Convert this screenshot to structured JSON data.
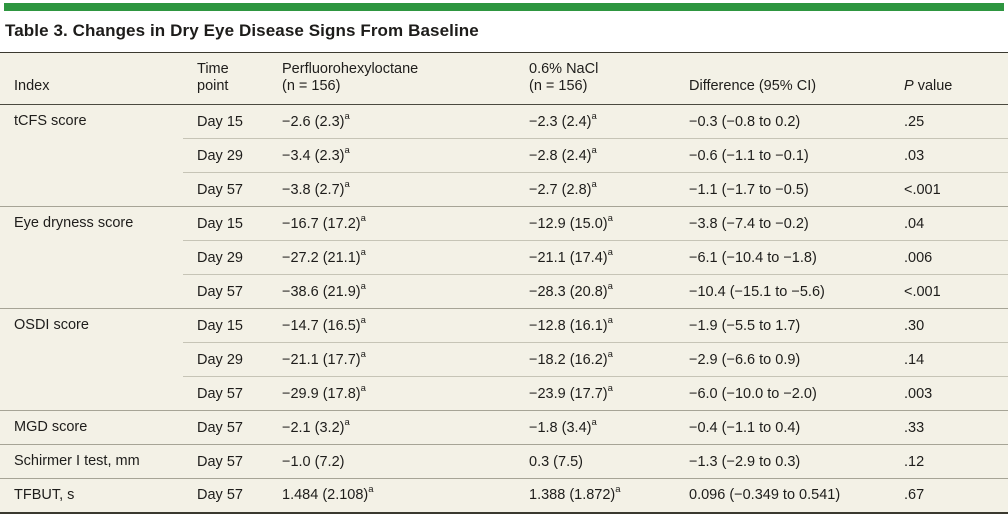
{
  "title": "Table 3. Changes in Dry Eye Disease Signs From Baseline",
  "colors": {
    "accent_green": "#2e9640",
    "table_background": "#f3f1e6",
    "rule_dark": "#3a392f",
    "rule_group": "#a6a496",
    "rule_row": "#c6c4b6",
    "text": "#1e1d1b"
  },
  "table": {
    "headers": [
      {
        "key": "index",
        "lines": [
          "Index"
        ],
        "italic_first": false
      },
      {
        "key": "time-point",
        "lines": [
          "Time",
          "point"
        ],
        "italic_first": false
      },
      {
        "key": "perfluorohexyloctane",
        "lines": [
          "Perfluorohexyloctane",
          "(n = 156)"
        ],
        "italic_first": false
      },
      {
        "key": "nacl",
        "lines": [
          "0.6% NaCl",
          "(n = 156)"
        ],
        "italic_first": false
      },
      {
        "key": "difference",
        "lines": [
          "Difference (95% CI)"
        ],
        "italic_first": false
      },
      {
        "key": "p-value",
        "lines": [
          "P value"
        ],
        "italic_first": true
      }
    ],
    "groups": [
      {
        "index": "tCFS score",
        "rows": [
          {
            "time": "Day 15",
            "pfho": "−2.6 (2.3)",
            "pfho_sup": "a",
            "nacl": "−2.3 (2.4)",
            "nacl_sup": "a",
            "diff": "−0.3 (−0.8 to 0.2)",
            "p": ".25"
          },
          {
            "time": "Day 29",
            "pfho": "−3.4 (2.3)",
            "pfho_sup": "a",
            "nacl": "−2.8 (2.4)",
            "nacl_sup": "a",
            "diff": "−0.6 (−1.1 to −0.1)",
            "p": ".03"
          },
          {
            "time": "Day 57",
            "pfho": "−3.8 (2.7)",
            "pfho_sup": "a",
            "nacl": "−2.7 (2.8)",
            "nacl_sup": "a",
            "diff": "−1.1 (−1.7 to −0.5)",
            "p": "<.001"
          }
        ]
      },
      {
        "index": "Eye dryness score",
        "rows": [
          {
            "time": "Day 15",
            "pfho": "−16.7 (17.2)",
            "pfho_sup": "a",
            "nacl": "−12.9 (15.0)",
            "nacl_sup": "a",
            "diff": "−3.8 (−7.4 to −0.2)",
            "p": ".04"
          },
          {
            "time": "Day 29",
            "pfho": "−27.2 (21.1)",
            "pfho_sup": "a",
            "nacl": "−21.1 (17.4)",
            "nacl_sup": "a",
            "diff": "−6.1 (−10.4 to −1.8)",
            "p": ".006"
          },
          {
            "time": "Day 57",
            "pfho": "−38.6 (21.9)",
            "pfho_sup": "a",
            "nacl": "−28.3 (20.8)",
            "nacl_sup": "a",
            "diff": "−10.4 (−15.1 to −5.6)",
            "p": "<.001"
          }
        ]
      },
      {
        "index": "OSDI score",
        "rows": [
          {
            "time": "Day 15",
            "pfho": "−14.7 (16.5)",
            "pfho_sup": "a",
            "nacl": "−12.8 (16.1)",
            "nacl_sup": "a",
            "diff": "−1.9 (−5.5 to 1.7)",
            "p": ".30"
          },
          {
            "time": "Day 29",
            "pfho": "−21.1 (17.7)",
            "pfho_sup": "a",
            "nacl": "−18.2 (16.2)",
            "nacl_sup": "a",
            "diff": "−2.9 (−6.6 to 0.9)",
            "p": ".14"
          },
          {
            "time": "Day 57",
            "pfho": "−29.9 (17.8)",
            "pfho_sup": "a",
            "nacl": "−23.9 (17.7)",
            "nacl_sup": "a",
            "diff": "−6.0 (−10.0 to −2.0)",
            "p": ".003"
          }
        ]
      },
      {
        "index": "MGD score",
        "rows": [
          {
            "time": "Day 57",
            "pfho": "−2.1 (3.2)",
            "pfho_sup": "a",
            "nacl": "−1.8 (3.4)",
            "nacl_sup": "a",
            "diff": "−0.4 (−1.1 to 0.4)",
            "p": ".33"
          }
        ]
      },
      {
        "index": "Schirmer I test, mm",
        "rows": [
          {
            "time": "Day 57",
            "pfho": "−1.0 (7.2)",
            "pfho_sup": "",
            "nacl": "0.3 (7.5)",
            "nacl_sup": "",
            "diff": "−1.3 (−2.9 to 0.3)",
            "p": ".12"
          }
        ]
      },
      {
        "index": "TFBUT, s",
        "rows": [
          {
            "time": "Day 57",
            "pfho": "1.484 (2.108)",
            "pfho_sup": "a",
            "nacl": "1.388 (1.872)",
            "nacl_sup": "a",
            "diff": "0.096 (−0.349 to 0.541)",
            "p": ".67"
          }
        ]
      }
    ]
  }
}
